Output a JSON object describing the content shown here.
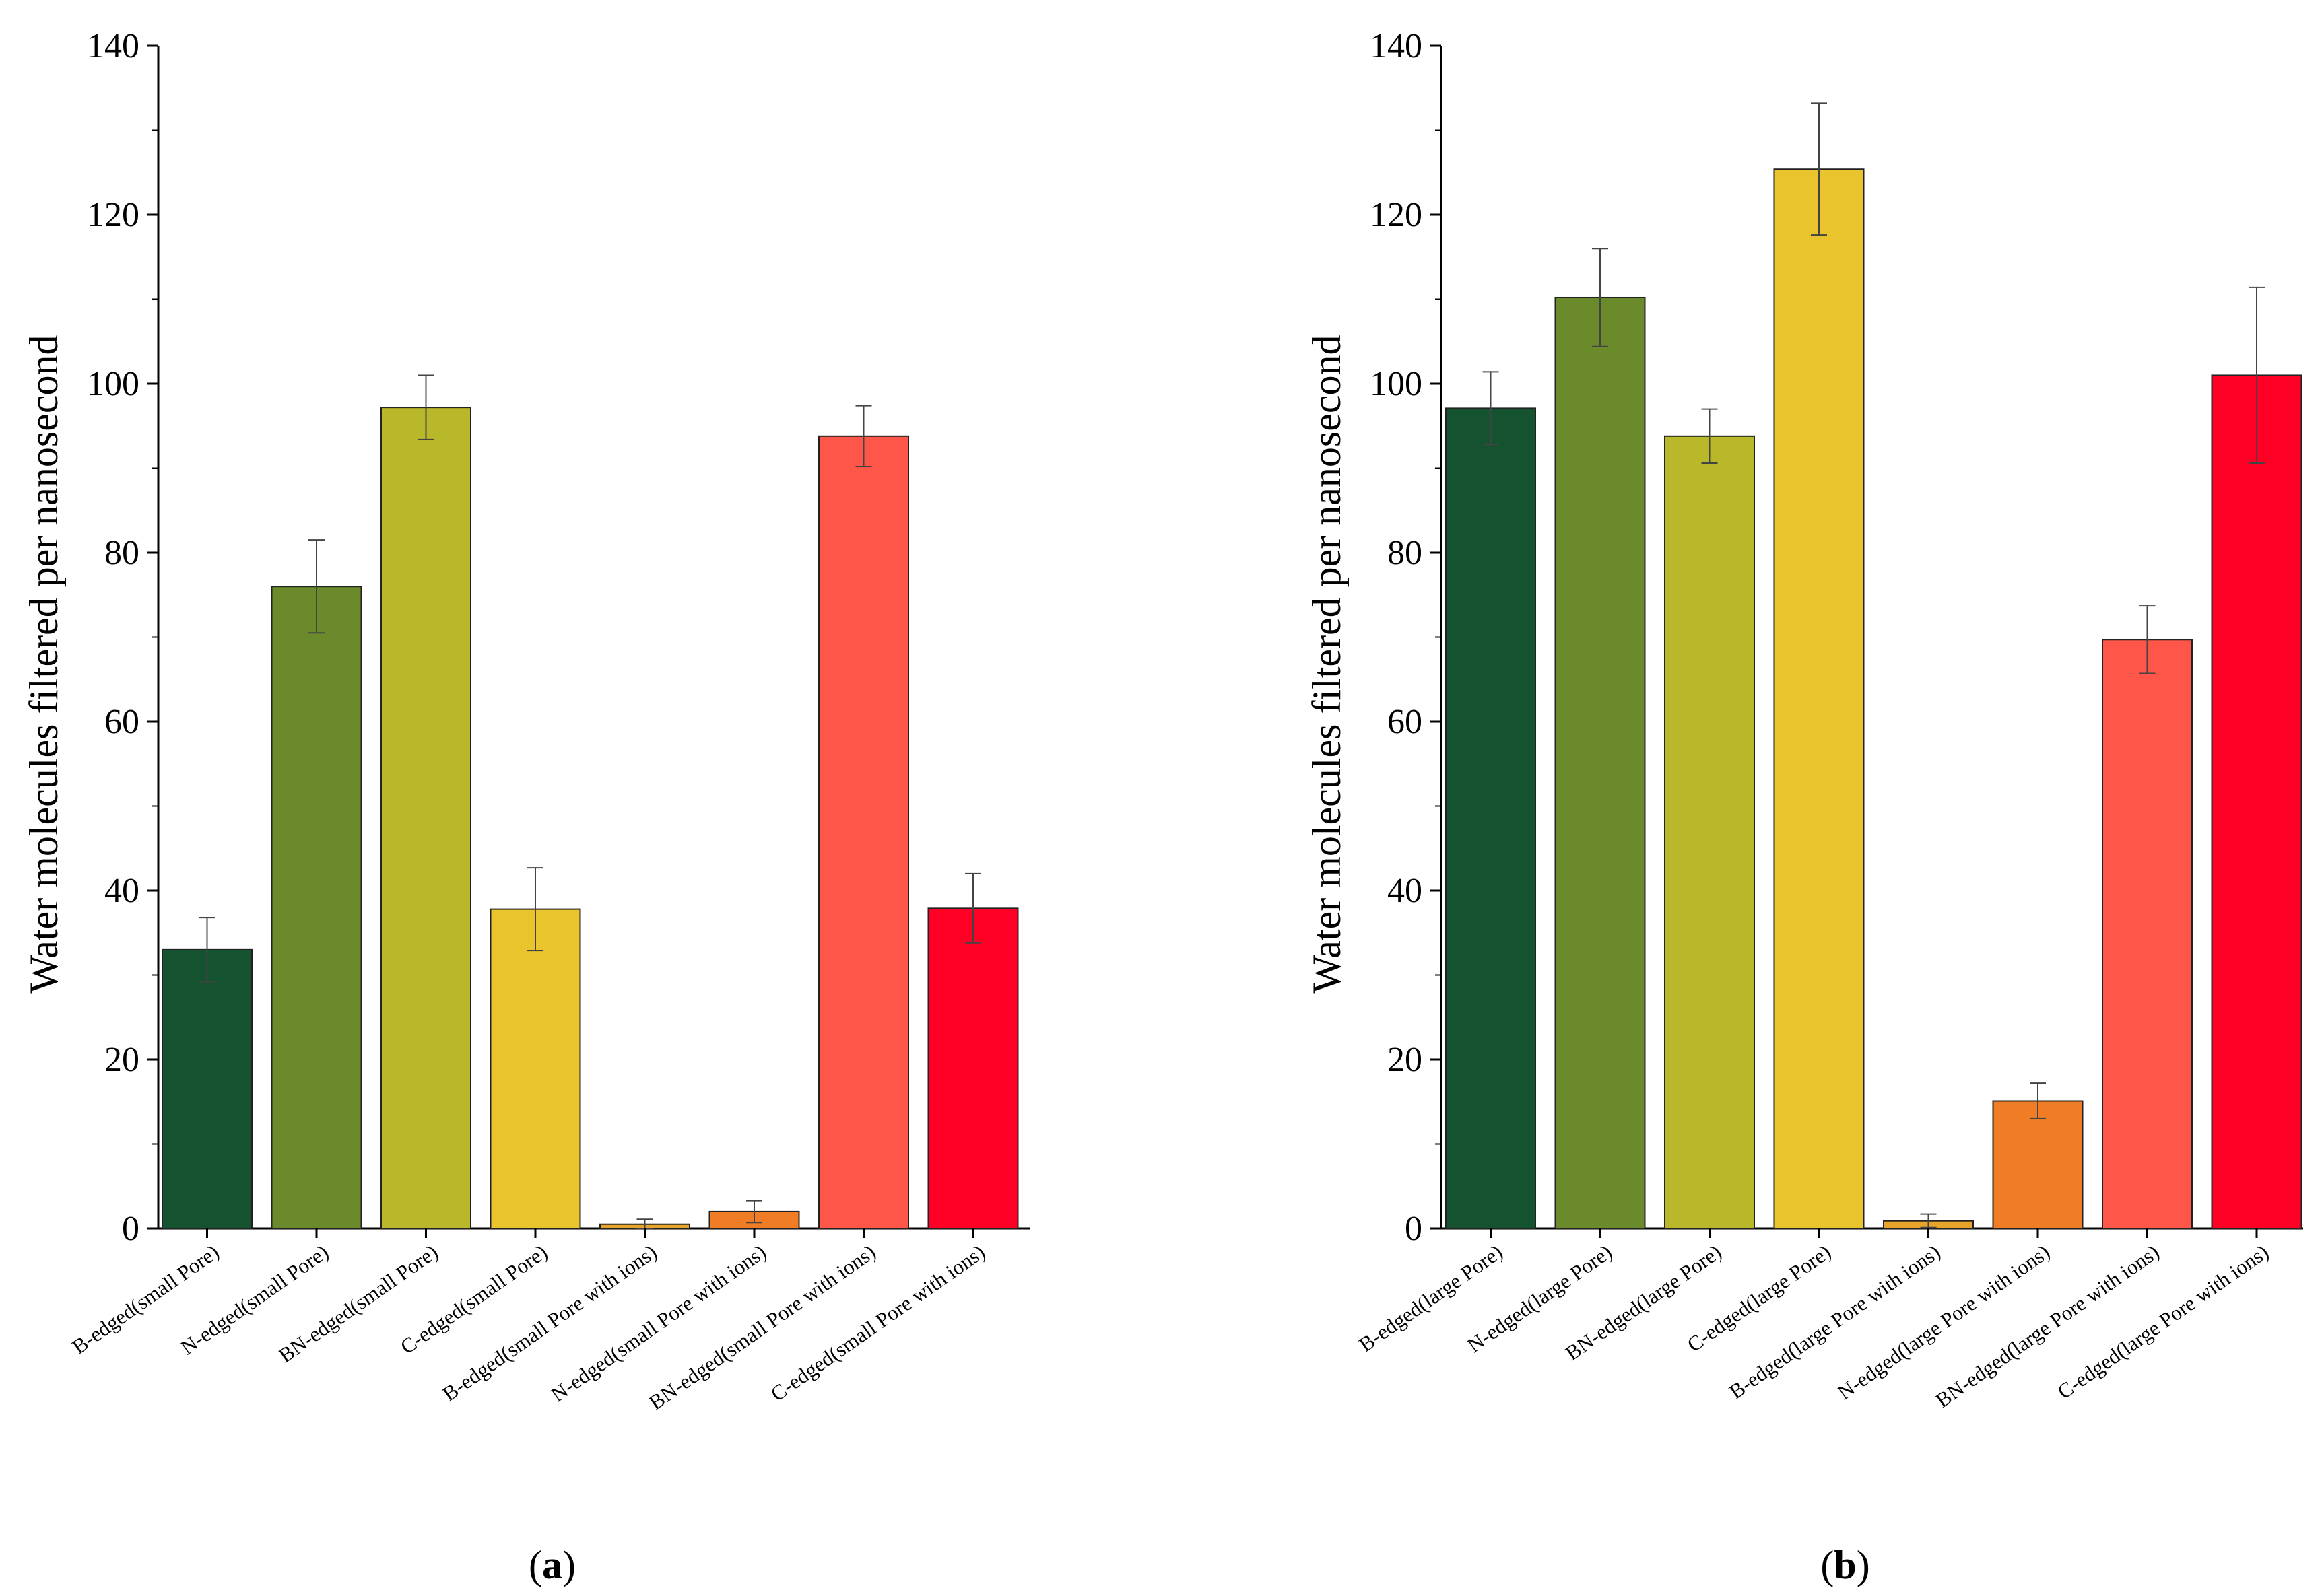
{
  "chart_data": [
    {
      "type": "bar",
      "panel_label": "a",
      "ylabel": "Water molecules filtered per nanosecond",
      "xlabel": "",
      "ylim": [
        0,
        140
      ],
      "yticks": [
        "0",
        "20",
        "40",
        "60",
        "80",
        "100",
        "120",
        "140"
      ],
      "categories": [
        "B-edged(small Pore)",
        "N-edged(small Pore)",
        "BN-edged(small Pore)",
        "C-edged(small Pore)",
        "B-edged(small Pore with ions)",
        "N-edged(small Pore with ions)",
        "BN-edged(small Pore with ions)",
        "C-edged(small Pore  with ions)"
      ],
      "values": [
        33,
        76,
        97.2,
        37.8,
        0.5,
        2,
        93.8,
        37.9
      ],
      "errors": [
        3.8,
        5.5,
        3.8,
        4.9,
        0.6,
        1.3,
        3.6,
        4.1
      ],
      "colors": [
        "#145230",
        "#6b8a2b",
        "#b9b82b",
        "#eac42c",
        "#e8a32a",
        "#f07d25",
        "#fe5649",
        "#fe0026"
      ]
    },
    {
      "type": "bar",
      "panel_label": "b",
      "ylabel": "Water molecules filtered per nanosecond",
      "xlabel": "",
      "ylim": [
        0,
        140
      ],
      "yticks": [
        "0",
        "20",
        "40",
        "60",
        "80",
        "100",
        "120",
        "140"
      ],
      "categories": [
        "B-edged(large Pore)",
        "N-edged(large Pore)",
        "BN-edged(large Pore)",
        "C-edged(large Pore)",
        "B-edged(large Pore with ions)",
        "N-edged(large Pore with ions)",
        "BN-edged(large Pore with ions)",
        "C-edged(large Pore  with ions)"
      ],
      "values": [
        97.1,
        110.2,
        93.8,
        125.4,
        0.9,
        15.1,
        69.7,
        101
      ],
      "errors": [
        4.3,
        5.8,
        3.2,
        7.8,
        0.8,
        2.1,
        4,
        10.4
      ],
      "colors": [
        "#145230",
        "#6b8a2b",
        "#b9b82b",
        "#eac42c",
        "#e8a32a",
        "#f07d25",
        "#fe5649",
        "#fe0026"
      ]
    }
  ]
}
